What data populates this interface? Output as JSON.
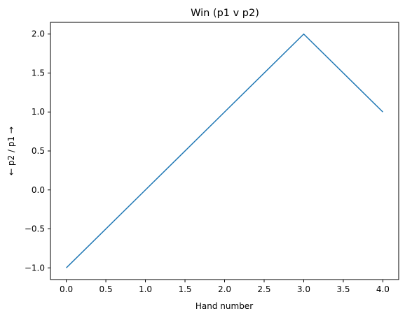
{
  "chart_data": {
    "type": "line",
    "title": "Win (p1 v p2)",
    "xlabel": "Hand number",
    "ylabel": "← p2 / p1 →",
    "x": [
      0,
      1,
      2,
      3,
      4
    ],
    "series": [
      {
        "values": [
          -1,
          0,
          1,
          2,
          1
        ],
        "color": "#1f77b4"
      }
    ],
    "xlim": [
      -0.2,
      4.2
    ],
    "ylim": [
      -1.15,
      2.15
    ],
    "xticks": [
      0.0,
      0.5,
      1.0,
      1.5,
      2.0,
      2.5,
      3.0,
      3.5,
      4.0
    ],
    "xtick_labels": [
      "0.0",
      "0.5",
      "1.0",
      "1.5",
      "2.0",
      "2.5",
      "3.0",
      "3.5",
      "4.0"
    ],
    "yticks": [
      -1.0,
      -0.5,
      0.0,
      0.5,
      1.0,
      1.5,
      2.0
    ],
    "ytick_labels": [
      "−1.0",
      "−0.5",
      "0.0",
      "0.5",
      "1.0",
      "1.5",
      "2.0"
    ],
    "grid": false,
    "legend": false
  }
}
